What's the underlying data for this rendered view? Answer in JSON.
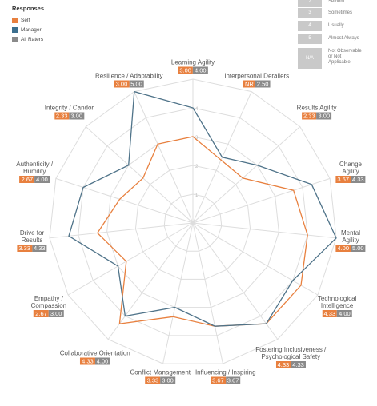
{
  "chart_data": {
    "type": "radar",
    "legend_title": "Responses",
    "legend": [
      {
        "name": "Self",
        "color": "#e8803f"
      },
      {
        "name": "Manager",
        "color": "#3c6f8e"
      },
      {
        "name": "All Raters",
        "color": "#8a8a8a"
      }
    ],
    "scale": [
      {
        "key": "2",
        "label": "Seldom"
      },
      {
        "key": "3",
        "label": "Sometimes"
      },
      {
        "key": "4",
        "label": "Usually"
      },
      {
        "key": "5",
        "label": "Almost Always"
      },
      {
        "key": "N/A",
        "label": "Not Observable\nor Not\nApplicable"
      }
    ],
    "categories": [
      "Learning Agility",
      "Interpersonal Derailers",
      "Results Agility",
      "Change\nAgility",
      "Mental\nAgility",
      "Technological\nIntelligence",
      "Fostering Inclusiveness /\nPsychological Safety",
      "Influencing / Inspiring",
      "Conflict Management",
      "Collaborative Orientation",
      "Empathy /\nCompassion",
      "Drive for\nResults",
      "Authenticity /\nHumility",
      "Integrity / Candor",
      "Resilience / Adaptability"
    ],
    "series": [
      {
        "name": "Self",
        "color": "#e8803f",
        "values": [
          3,
          null,
          2.33,
          3.67,
          4,
          4.33,
          4.33,
          3.67,
          3.33,
          4.33,
          2.67,
          3.33,
          2.67,
          2.33,
          3
        ],
        "value_labels": [
          "3.00",
          "NR",
          "2.33",
          "3.67",
          "4.00",
          "4.33",
          "4.33",
          "3.67",
          "3.33",
          "4.33",
          "2.67",
          "3.33",
          "2.67",
          "2.33",
          "3.00"
        ]
      },
      {
        "name": "All Raters",
        "color": "#8a8a8a",
        "line_color": "#4f7389",
        "values": [
          4,
          2.5,
          3,
          4.33,
          5,
          4,
          4.33,
          3.67,
          3,
          4,
          3,
          4.33,
          4,
          3,
          5
        ],
        "value_labels": [
          "4.00",
          "2.50",
          "3.00",
          "4.33",
          "5.00",
          "4.00",
          "4.33",
          "3.67",
          "3.00",
          "4.00",
          "3.00",
          "4.33",
          "4.00",
          "3.00",
          "5.00"
        ]
      }
    ],
    "rlim": [
      0,
      5
    ],
    "rticks": [
      1,
      2,
      3,
      4
    ],
    "grid": true
  }
}
